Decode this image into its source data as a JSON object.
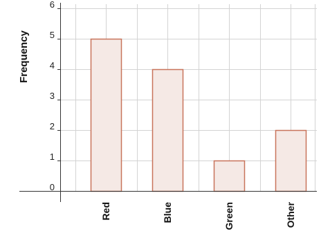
{
  "chart_data": {
    "type": "bar",
    "categories": [
      "Red",
      "Blue",
      "Green",
      "Other"
    ],
    "values": [
      5,
      4,
      1,
      2
    ],
    "xlabel": "",
    "ylabel": "Frequency",
    "ylim": [
      0,
      6
    ],
    "yticks": [
      0,
      1,
      2,
      3,
      4,
      5,
      6
    ],
    "grid": true,
    "colors": {
      "bar_fill": "#f5e9e5",
      "bar_stroke": "#c8735a",
      "grid": "#d3d3d3",
      "axis": "#333333"
    }
  }
}
